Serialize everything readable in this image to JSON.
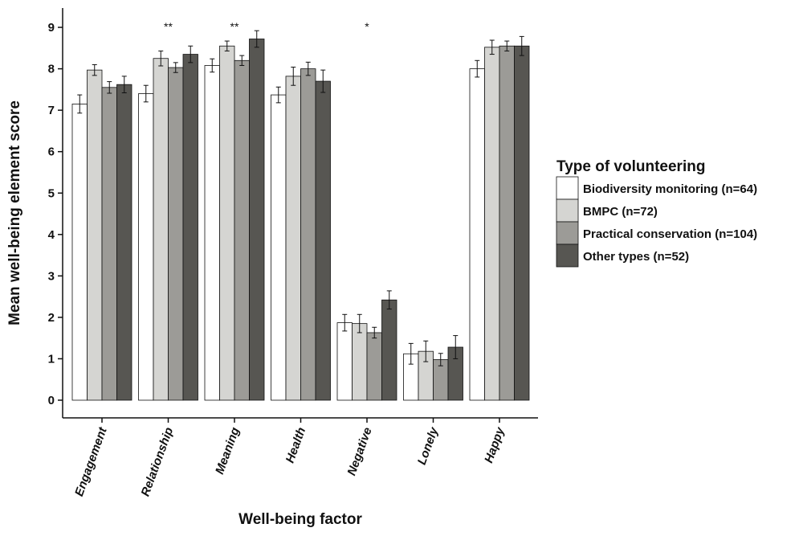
{
  "chart_data": {
    "type": "bar",
    "categories": [
      "Engagement",
      "Relationship",
      "Meaning",
      "Health",
      "Negative",
      "Lonely",
      "Happy"
    ],
    "xlabel": "Well-being factor",
    "ylabel": "Mean well-being element score",
    "ylim": [
      0,
      9.4
    ],
    "yticks": [
      0,
      1,
      2,
      3,
      4,
      5,
      6,
      7,
      8,
      9
    ],
    "grid": false,
    "legend": {
      "title": "Type of volunteering",
      "placement": "right"
    },
    "significance": [
      "",
      "**",
      "**",
      "",
      "*",
      "",
      ""
    ],
    "series": [
      {
        "name": "Biodiversity monitoring (n=64)",
        "color": "#ffffff",
        "values": [
          7.15,
          7.4,
          8.08,
          7.37,
          1.87,
          1.12,
          8.0
        ],
        "errors": [
          0.22,
          0.2,
          0.16,
          0.19,
          0.2,
          0.25,
          0.2
        ]
      },
      {
        "name": "BMPC (n=72)",
        "color": "#d5d5d2",
        "values": [
          7.97,
          8.25,
          8.55,
          7.82,
          1.85,
          1.18,
          8.52
        ],
        "errors": [
          0.13,
          0.18,
          0.12,
          0.22,
          0.22,
          0.25,
          0.17
        ]
      },
      {
        "name": "Practical conservation (n=104)",
        "color": "#9c9b97",
        "values": [
          7.55,
          8.03,
          8.2,
          8.0,
          1.63,
          0.98,
          8.55
        ],
        "errors": [
          0.14,
          0.12,
          0.12,
          0.16,
          0.13,
          0.15,
          0.12
        ]
      },
      {
        "name": "Other types (n=52)",
        "color": "#575652",
        "values": [
          7.62,
          8.35,
          8.72,
          7.7,
          2.42,
          1.28,
          8.55
        ],
        "errors": [
          0.2,
          0.2,
          0.2,
          0.27,
          0.22,
          0.28,
          0.23
        ]
      }
    ]
  }
}
